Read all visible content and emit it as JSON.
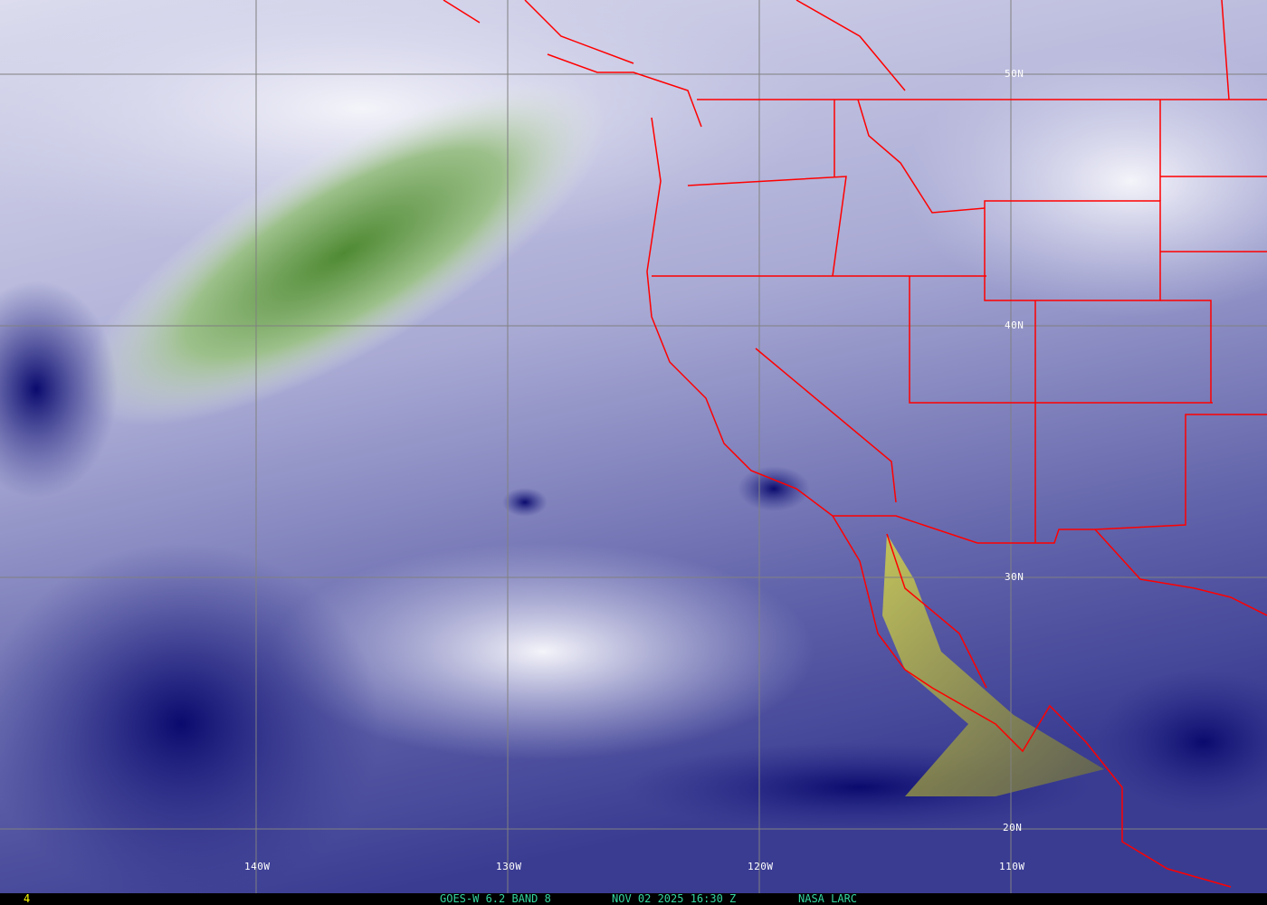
{
  "map": {
    "type": "satellite water vapor imagery",
    "colors": {
      "moist_dark": "#0a0a6e",
      "mid": "#7a7cb8",
      "dry_light": "#e8e9f4",
      "very_dry_green": "#5a8a3a",
      "extreme_yellow": "#d8d830",
      "borders": "#ff0000",
      "grid": "#808080"
    },
    "longitude_labels": [
      "140W",
      "130W",
      "120W",
      "110W"
    ],
    "latitude_labels": [
      "50N",
      "40N",
      "30N",
      "20N"
    ]
  },
  "footer": {
    "frame_number": "4",
    "satellite_band": "GOES-W 6.2 BAND 8",
    "datetime": "NOV 02 2025 16:30 Z",
    "source": "NASA LARC",
    "text_color": "#33d6a0",
    "frame_color": "#ffff00"
  }
}
